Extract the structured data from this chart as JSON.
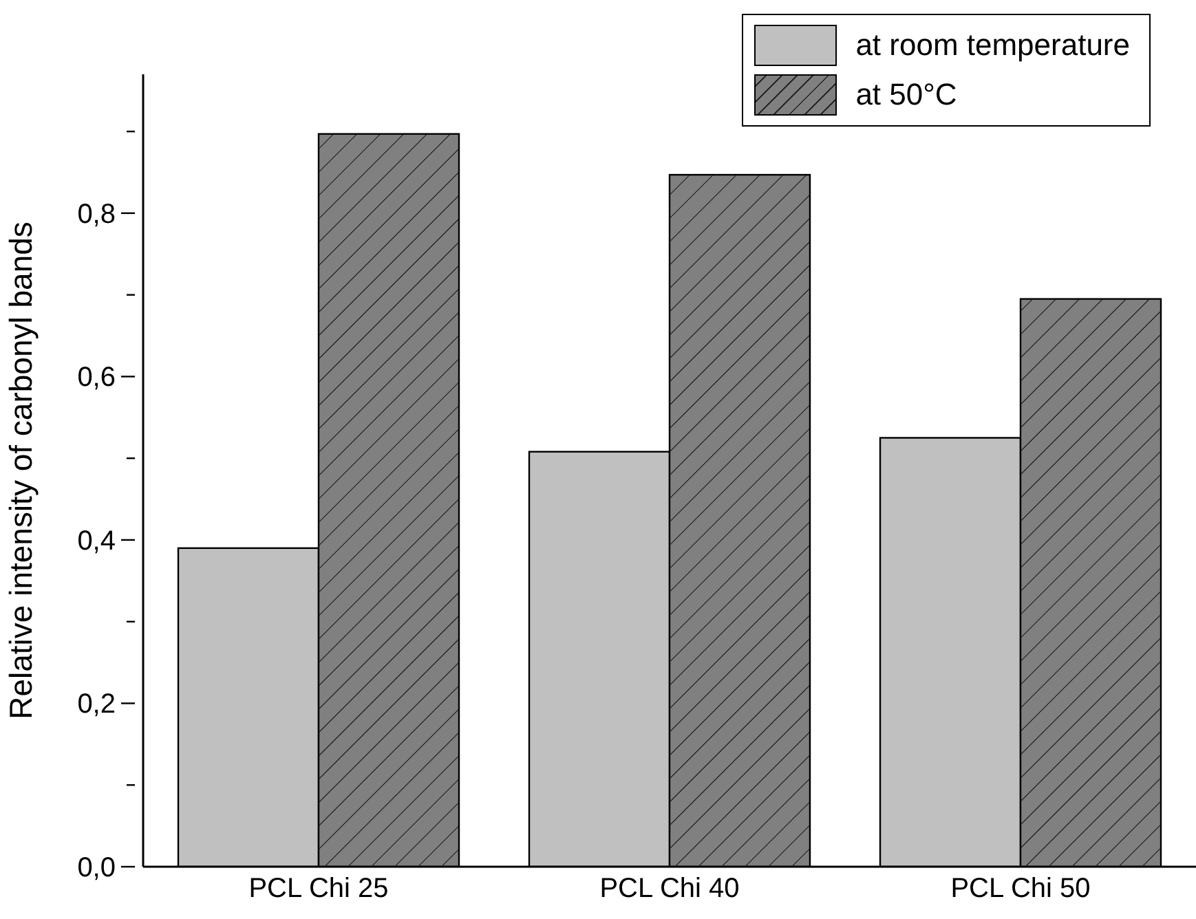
{
  "chart_data": {
    "type": "bar",
    "ylabel": "Relative intensity of carbonyl bands",
    "categories": [
      "PCL  Chi 25",
      "PCL  Chi 40",
      "PCL  Chi 50"
    ],
    "series": [
      {
        "name": "at room temperature",
        "color": "#c0c0c0",
        "values": [
          0.39,
          0.508,
          0.525
        ]
      },
      {
        "name": "at 50°C",
        "color": "#808080",
        "values": [
          0.897,
          0.847,
          0.695
        ]
      }
    ],
    "ylim": [
      0,
      0.97
    ],
    "yticks": [
      {
        "value": 0,
        "label": "0,0"
      },
      {
        "value": 0.1,
        "label": null
      },
      {
        "value": 0.2,
        "label": "0,2"
      },
      {
        "value": 0.3,
        "label": null
      },
      {
        "value": 0.4,
        "label": "0,4"
      },
      {
        "value": 0.5,
        "label": null
      },
      {
        "value": 0.6,
        "label": "0,6"
      },
      {
        "value": 0.7,
        "label": null
      },
      {
        "value": 0.8,
        "label": "0,8"
      },
      {
        "value": 0.9,
        "label": null
      }
    ],
    "grid": false,
    "legend": "top right"
  }
}
